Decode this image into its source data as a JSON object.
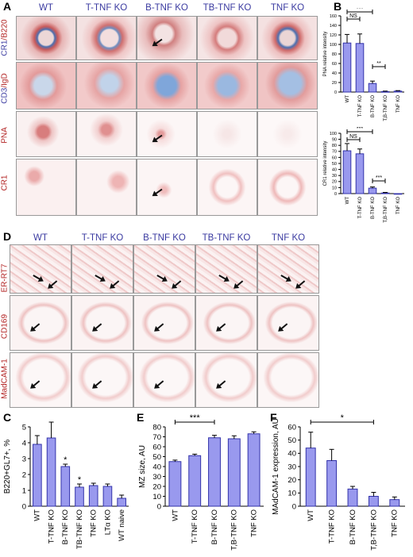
{
  "panel_labels": {
    "a": "A",
    "b": "B",
    "c": "C",
    "d": "D",
    "e": "E",
    "f": "F"
  },
  "panel_a": {
    "columns": [
      "WT",
      "T-TNF KO",
      "B-TNF KO",
      "TB-TNF KO",
      "TNF KO"
    ],
    "row_cr1_b220": {
      "a": "CR1",
      "sep": "/",
      "b": "B220"
    },
    "row_cd3_igd": {
      "a": "CD3",
      "sep": "/",
      "b": "IgD"
    },
    "row_pna": "PNA",
    "row_cr1": "CR1"
  },
  "panel_d": {
    "columns": [
      "WT",
      "T-TNF KO",
      "B-TNF KO",
      "TB-TNF KO",
      "TNF KO"
    ],
    "rows": [
      "ER-RT7",
      "CD169",
      "MadCAM-1"
    ]
  },
  "colors": {
    "bar": "#9999ee",
    "bar_stroke": "#3333aa"
  },
  "chart_data": [
    {
      "type": "bar",
      "panel": "B-top",
      "categories": [
        "WT",
        "T-TNF KO",
        "B-TNF KO",
        "T,B-TNF KO",
        "TNF KO"
      ],
      "values": [
        103,
        102,
        18,
        1,
        2
      ],
      "errors": [
        18,
        20,
        5,
        1,
        1
      ],
      "ylabel": "PNA relative intensity",
      "ylim": [
        0,
        160
      ],
      "yticks": [
        0,
        20,
        40,
        60,
        80,
        100,
        120,
        140,
        160
      ],
      "annotations": [
        {
          "from": 0,
          "to": 2,
          "label": "***"
        },
        {
          "from": 0,
          "to": 1,
          "label": "NS"
        },
        {
          "from": 2,
          "to": 3,
          "label": "**"
        }
      ]
    },
    {
      "type": "bar",
      "panel": "B-bottom",
      "categories": [
        "WT",
        "T-TNF KO",
        "B-TNF KO",
        "T,B-TNF KO",
        "TNF KO"
      ],
      "values": [
        71,
        66,
        9,
        1,
        0
      ],
      "errors": [
        12,
        8,
        2,
        1,
        0
      ],
      "ylabel": "CR1 relative intensity",
      "ylim": [
        0,
        100
      ],
      "yticks": [
        0,
        10,
        20,
        30,
        40,
        50,
        60,
        70,
        80,
        90,
        100
      ],
      "annotations": [
        {
          "from": 0,
          "to": 2,
          "label": "***"
        },
        {
          "from": 0,
          "to": 1,
          "label": "NS"
        },
        {
          "from": 2,
          "to": 3,
          "label": "***"
        }
      ]
    },
    {
      "type": "bar",
      "panel": "C",
      "categories": [
        "WT",
        "T-TNF KO",
        "B-TNF KO",
        "TB-TNF KO",
        "TNF KO",
        "LTα KO",
        "WT naive"
      ],
      "values": [
        3.9,
        4.3,
        2.5,
        1.2,
        1.3,
        1.25,
        0.5
      ],
      "errors": [
        0.55,
        1.0,
        0.15,
        0.2,
        0.15,
        0.15,
        0.2
      ],
      "ylabel": "B220+GL7+, %",
      "ylim": [
        0,
        5
      ],
      "yticks": [
        0,
        1,
        2,
        3,
        4,
        5
      ],
      "annotations": [
        {
          "at": 2,
          "label": "*"
        },
        {
          "at": 3,
          "label": "*"
        }
      ]
    },
    {
      "type": "bar",
      "panel": "E",
      "categories": [
        "WT",
        "T-TNF KO",
        "B-TNF KO",
        "T,B-TNF KO",
        "TNF KO"
      ],
      "values": [
        45,
        51,
        69,
        68,
        73
      ],
      "errors": [
        1.5,
        1.5,
        2.5,
        3,
        2
      ],
      "ylabel": "MZ size, AU",
      "ylim": [
        0,
        80
      ],
      "yticks": [
        0,
        10,
        20,
        30,
        40,
        50,
        60,
        70,
        80
      ],
      "annotations": [
        {
          "from": 0,
          "to": 2,
          "label": "***"
        }
      ]
    },
    {
      "type": "bar",
      "panel": "F",
      "categories": [
        "WT",
        "T-TNF KO",
        "B-TNF KO",
        "T,B-TNF KO",
        "TNF KO"
      ],
      "values": [
        44,
        34.5,
        13,
        7.5,
        5
      ],
      "errors": [
        12,
        8.5,
        2,
        3,
        2
      ],
      "ylabel": "MAdCAM-1 expression, AU",
      "ylim": [
        0,
        60
      ],
      "yticks": [
        0,
        10,
        20,
        30,
        40,
        50,
        60
      ],
      "annotations": [
        {
          "from": 0,
          "to": 3,
          "label": "*"
        }
      ]
    }
  ]
}
